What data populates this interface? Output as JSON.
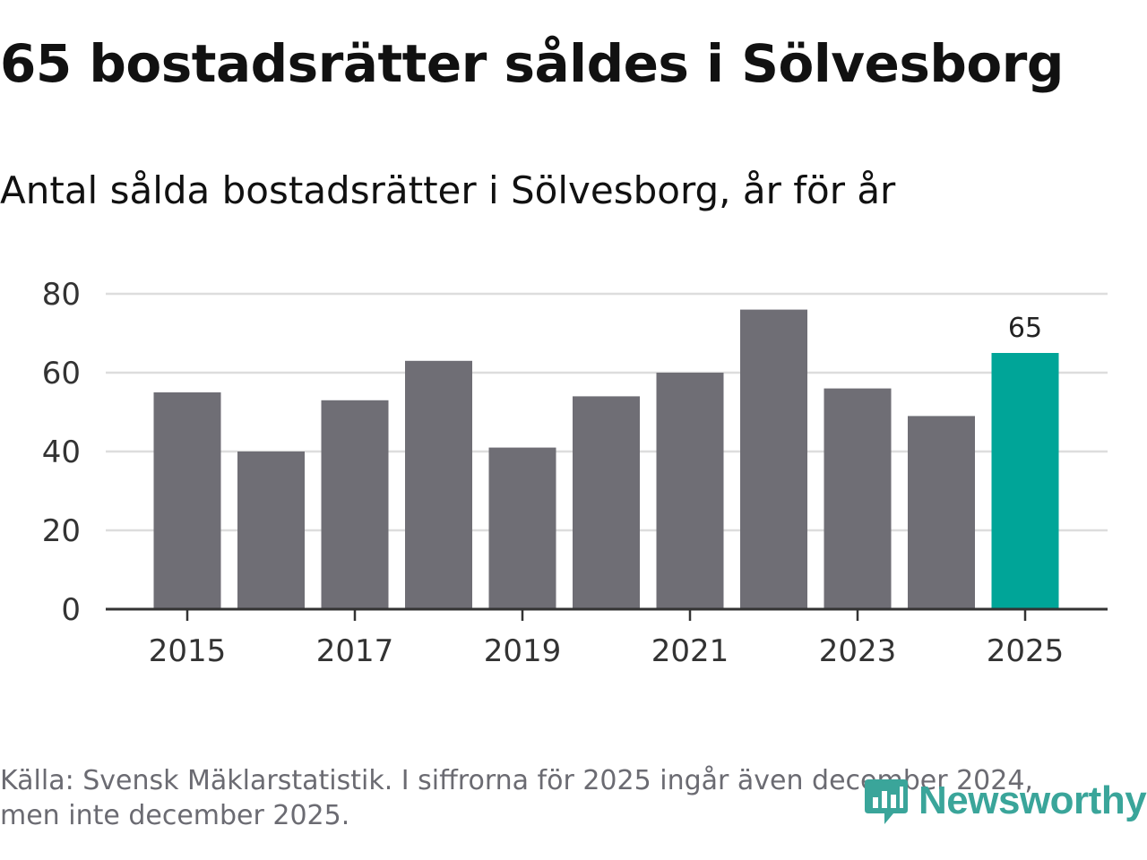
{
  "header": {
    "title": "65 bostadsrätter såldes i Sölvesborg",
    "subtitle": "Antal sålda bostadsrätter i Sölvesborg, år för år"
  },
  "colors": {
    "bar": "#6f6e75",
    "highlight": "#00a598",
    "grid": "#dddddd",
    "axis": "#333333",
    "tick_text": "#333333",
    "footer_text": "#6b6b72",
    "brand": "#3aa59a"
  },
  "chart_data": {
    "type": "bar",
    "title": "Antal sålda bostadsrätter i Sölvesborg, år för år",
    "xlabel": "",
    "ylabel": "",
    "categories": [
      "2015",
      "2016",
      "2017",
      "2018",
      "2019",
      "2020",
      "2021",
      "2022",
      "2023",
      "2024",
      "2025"
    ],
    "values": [
      55,
      40,
      53,
      63,
      41,
      54,
      60,
      76,
      56,
      49,
      65
    ],
    "highlight_category": "2025",
    "data_labels": [
      {
        "category": "2025",
        "text": "65"
      }
    ],
    "x_tick_labels": [
      "2015",
      "2017",
      "2019",
      "2021",
      "2023",
      "2025"
    ],
    "y_ticks": [
      0,
      20,
      40,
      60,
      80
    ],
    "ylim": [
      0,
      80
    ],
    "grid": true
  },
  "footer": {
    "source_line1": "Källa: Svensk Mäklarstatistik. I siffrorna för 2025 ingår även december 2024,",
    "source_line2": "men inte december 2025.",
    "brand": "Newsworthy"
  }
}
